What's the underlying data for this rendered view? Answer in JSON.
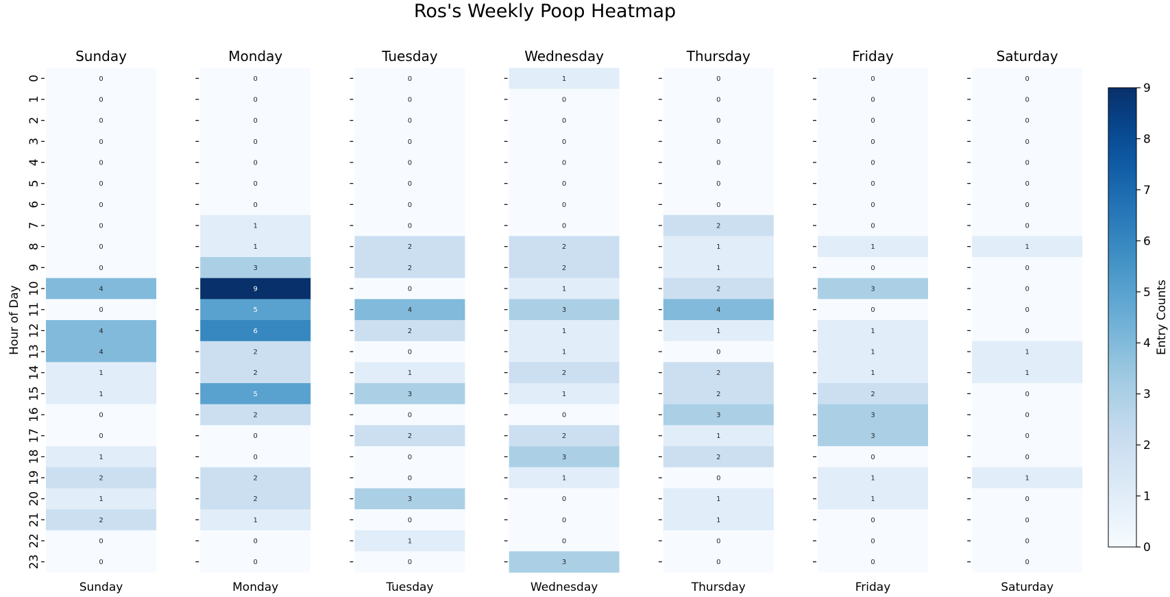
{
  "chart_data": {
    "type": "heatmap",
    "title": "Ros's Weekly Poop Heatmap",
    "ylabel": "Hour of Day",
    "colorbar_label": "Entry Counts",
    "colormap": "Blues",
    "vmin": 0,
    "vmax": 9,
    "colorbar_ticks": [
      "0",
      "1",
      "2",
      "3",
      "4",
      "5",
      "6",
      "7",
      "8",
      "9"
    ],
    "hours": [
      "0",
      "1",
      "2",
      "3",
      "4",
      "5",
      "6",
      "7",
      "8",
      "9",
      "10",
      "11",
      "12",
      "13",
      "14",
      "15",
      "16",
      "17",
      "18",
      "19",
      "20",
      "21",
      "22",
      "23"
    ],
    "days": [
      {
        "name": "Sunday",
        "values": [
          0,
          0,
          0,
          0,
          0,
          0,
          0,
          0,
          0,
          0,
          4,
          0,
          4,
          4,
          1,
          1,
          0,
          0,
          1,
          2,
          1,
          2,
          0,
          0
        ]
      },
      {
        "name": "Monday",
        "values": [
          0,
          0,
          0,
          0,
          0,
          0,
          0,
          1,
          1,
          3,
          9,
          5,
          6,
          2,
          2,
          5,
          2,
          0,
          0,
          2,
          2,
          1,
          0,
          0
        ]
      },
      {
        "name": "Tuesday",
        "values": [
          0,
          0,
          0,
          0,
          0,
          0,
          0,
          0,
          2,
          2,
          0,
          4,
          2,
          0,
          1,
          3,
          0,
          2,
          0,
          0,
          3,
          0,
          1,
          0
        ]
      },
      {
        "name": "Wednesday",
        "values": [
          1,
          0,
          0,
          0,
          0,
          0,
          0,
          0,
          2,
          2,
          1,
          3,
          1,
          1,
          2,
          1,
          0,
          2,
          3,
          1,
          0,
          0,
          0,
          3
        ]
      },
      {
        "name": "Thursday",
        "values": [
          0,
          0,
          0,
          0,
          0,
          0,
          0,
          2,
          1,
          1,
          2,
          4,
          1,
          0,
          2,
          2,
          3,
          1,
          2,
          0,
          1,
          1,
          0,
          0
        ]
      },
      {
        "name": "Friday",
        "values": [
          0,
          0,
          0,
          0,
          0,
          0,
          0,
          0,
          1,
          0,
          3,
          0,
          1,
          1,
          1,
          2,
          3,
          3,
          0,
          1,
          1,
          0,
          0,
          0
        ]
      },
      {
        "name": "Saturday",
        "values": [
          0,
          0,
          0,
          0,
          0,
          0,
          0,
          0,
          1,
          0,
          0,
          0,
          0,
          1,
          1,
          0,
          0,
          0,
          0,
          1,
          0,
          0,
          0,
          0
        ]
      }
    ]
  }
}
